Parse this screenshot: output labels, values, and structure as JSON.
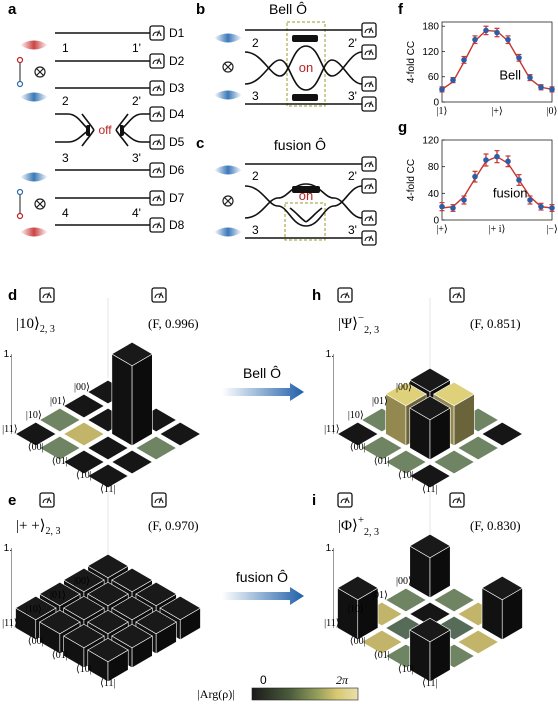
{
  "panels": {
    "a": {
      "label": "a",
      "detectors": [
        "D1",
        "D2",
        "D3",
        "D4",
        "D5",
        "D6",
        "D7",
        "D8"
      ],
      "ports_in": [
        "1",
        "2",
        "3",
        "4"
      ],
      "ports_out": [
        "1'",
        "2'",
        "3'",
        "4'"
      ],
      "switch": "off"
    },
    "b": {
      "label": "b",
      "title": "Bell Ô",
      "ports_in": [
        "2",
        "3"
      ],
      "ports_out": [
        "2'",
        "3'"
      ],
      "switch": "on"
    },
    "c": {
      "label": "c",
      "title": "fusion Ô",
      "ports_in": [
        "2",
        "3"
      ],
      "ports_out": [
        "2'",
        "3'"
      ],
      "switch": "on"
    },
    "d": {
      "label": "d",
      "state": "|10⟩",
      "state_sub": "2, 3",
      "fidelity": "(F, 0.996)"
    },
    "e": {
      "label": "e",
      "state": "|+ +⟩",
      "state_sub": "2, 3",
      "fidelity": "(F, 0.970)"
    },
    "h": {
      "label": "h",
      "state": "|Ψ⟩",
      "state_sup": "−",
      "state_sub": "2, 3",
      "fidelity": "(F, 0.851)"
    },
    "i": {
      "label": "i",
      "state": "|Φ⟩",
      "state_sup": "+",
      "state_sub": "2, 3",
      "fidelity": "(F, 0.830)"
    }
  },
  "arrows": {
    "bell": "Bell Ô",
    "fusion": "fusion Ô"
  },
  "matrix_axis": {
    "rows": [
      "|11⟩",
      "|10⟩",
      "|01⟩",
      "|00⟩"
    ],
    "cols": [
      "⟨00|",
      "⟨01|",
      "⟨10|",
      "⟨11|"
    ],
    "z_top": "1."
  },
  "colorbar": {
    "label": "|Arg(ρ)|",
    "min": "0",
    "max": "2π"
  },
  "chart_data": [
    {
      "type": "line",
      "panel": "f",
      "ylabel": "4-fold CC",
      "annotation": "Bell",
      "x_ticks": [
        "|1⟩",
        "|+⟩",
        "|0⟩"
      ],
      "yticks": [
        0,
        60,
        120,
        180
      ],
      "ylim": [
        0,
        190
      ],
      "x": [
        0,
        1,
        2,
        3,
        4,
        5,
        6,
        7,
        8,
        9,
        10
      ],
      "values": [
        30,
        52,
        100,
        148,
        170,
        165,
        148,
        105,
        58,
        35,
        30
      ],
      "errors": [
        6,
        6,
        8,
        9,
        10,
        10,
        9,
        8,
        7,
        6,
        6
      ],
      "fit": [
        30,
        48,
        95,
        145,
        170,
        168,
        145,
        100,
        55,
        35,
        30
      ]
    },
    {
      "type": "line",
      "panel": "g",
      "ylabel": "4-fold CC",
      "annotation": "fusion",
      "x_ticks": [
        "|+⟩",
        "|+ i⟩",
        "|−⟩"
      ],
      "yticks": [
        0,
        40,
        80,
        120
      ],
      "ylim": [
        0,
        120
      ],
      "x": [
        0,
        1,
        2,
        3,
        4,
        5,
        6,
        7,
        8,
        9,
        10
      ],
      "values": [
        20,
        18,
        30,
        65,
        90,
        95,
        88,
        60,
        30,
        20,
        18
      ],
      "errors": [
        6,
        5,
        6,
        8,
        9,
        9,
        8,
        8,
        6,
        5,
        5
      ],
      "fit": [
        18,
        20,
        35,
        62,
        88,
        95,
        85,
        60,
        35,
        20,
        18
      ]
    }
  ]
}
